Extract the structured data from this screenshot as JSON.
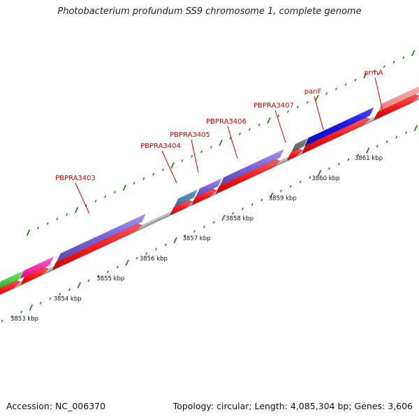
{
  "title": "Photobacterium profundum SS9 chromosome 1, complete genome",
  "footer": {
    "accession": "Accession: NC_006370",
    "summary": "Topology: circular; Length: 4,085,304 bp; Genes: 3,606"
  },
  "kbp_labels": [
    "3853 kbp",
    "3854 kbp",
    "3855 kbp",
    "3856 kbp",
    "3857 kbp",
    "3858 kbp",
    "3859 kbp",
    "3860 kbp",
    "3861 kbp"
  ],
  "gene_labels": [
    "PBPRA3403",
    "PBPRA3404",
    "PBPRA3405",
    "PBPRA3406",
    "PBPRA3407",
    "panF",
    "prmA"
  ],
  "colors": {
    "backbone": "#8c8c8c",
    "tick": "#1f8a1f",
    "cds": "#ff1a1a",
    "label": "#d40000",
    "gene_purple": "#7a63d6",
    "gene_blue": "#1414e6",
    "gene_green": "#3ac43a",
    "gene_magenta": "#ff1aa6",
    "gene_steel": "#4a7fb0",
    "gene_gray": "#6e6e6e",
    "gene_pink": "#f09090"
  }
}
